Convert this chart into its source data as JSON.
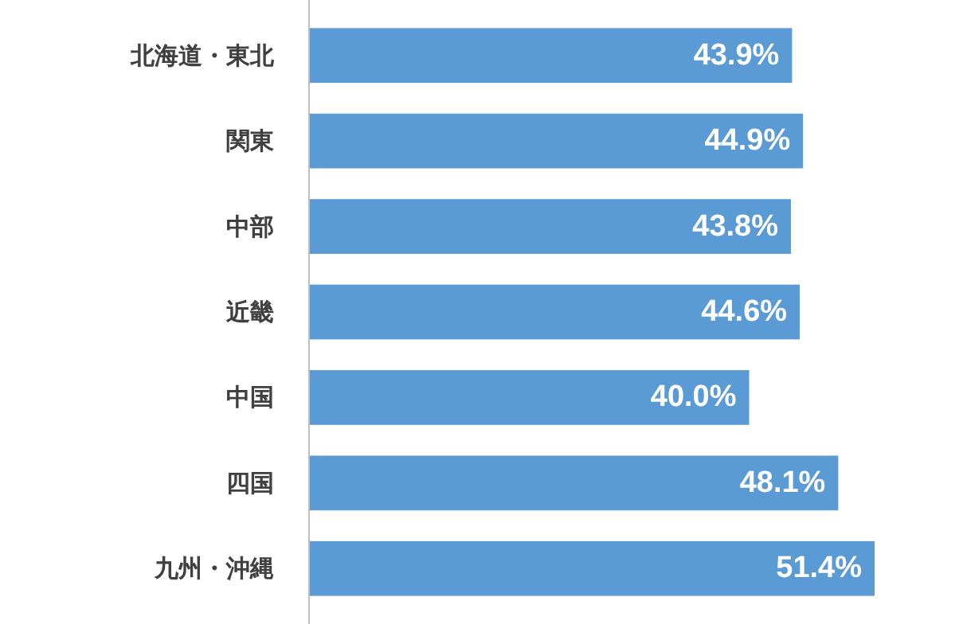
{
  "chart_data": {
    "type": "bar",
    "orientation": "horizontal",
    "categories": [
      "北海道・東北",
      "関東",
      "中部",
      "近畿",
      "中国",
      "四国",
      "九州・沖縄"
    ],
    "values": [
      43.9,
      44.9,
      43.8,
      44.6,
      40.0,
      48.1,
      51.4
    ],
    "value_labels": [
      "43.9%",
      "44.9%",
      "43.8%",
      "44.6%",
      "40.0%",
      "48.1%",
      "51.4%"
    ],
    "color": "#5b9bd5"
  }
}
